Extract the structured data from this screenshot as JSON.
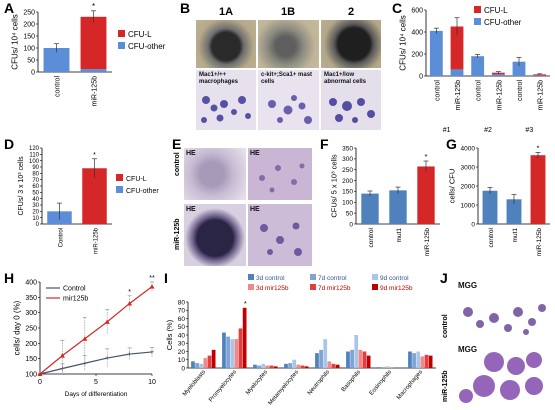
{
  "panel_labels": {
    "A": "A",
    "B": "B",
    "C": "C",
    "D": "D",
    "E": "E",
    "F": "F",
    "G": "G",
    "H": "H",
    "I": "I",
    "J": "J"
  },
  "colors": {
    "cfu_l": "#d62728",
    "cfu_other": "#5b8ed6",
    "bar_blue": "#4f81bd",
    "bar_red": "#d62728",
    "line_blue": "#44546a",
    "line_red": "#d62728"
  },
  "panel_B": {
    "headers": [
      "1A",
      "1B",
      "2"
    ],
    "captions": [
      "Mac1+/++ macrophages",
      "c-kit+;Sca1+ mast cells",
      "Mac1+/low abnormal cells"
    ]
  },
  "panel_E": {
    "row_labels": [
      "control",
      "miR-125b"
    ],
    "tags": [
      "HE",
      "HE",
      "HE",
      "HE"
    ]
  },
  "panel_J": {
    "row_labels": [
      "control",
      "miR-125b"
    ],
    "tags": [
      "MGG",
      "MGG"
    ]
  },
  "chart_data": [
    {
      "id": "A",
      "type": "bar",
      "stacked": true,
      "categories": [
        "control",
        "miR-125b"
      ],
      "series": [
        {
          "name": "CFU-other",
          "color": "#5b8ed6",
          "values": [
            100,
            12
          ]
        },
        {
          "name": "CFU-L",
          "color": "#d62728",
          "values": [
            0,
            218
          ]
        }
      ],
      "errors": [
        18,
        25
      ],
      "significance": [
        "",
        "*"
      ],
      "ylabel": "CFUs/ 10⁴ cells",
      "ylim": [
        0,
        250
      ],
      "yticks": [
        0,
        50,
        100,
        150,
        200,
        250
      ],
      "legend": [
        "CFU-L",
        "CFU-other"
      ],
      "legend_position": "right"
    },
    {
      "id": "C",
      "type": "bar",
      "stacked": true,
      "categories": [
        "control",
        "miR-125b",
        "control",
        "miR-125b",
        "control",
        "miR-125b"
      ],
      "groups": [
        "#1",
        "#2",
        "#3"
      ],
      "series": [
        {
          "name": "CFU-other",
          "color": "#5b8ed6",
          "values": [
            410,
            60,
            180,
            15,
            130,
            5
          ]
        },
        {
          "name": "CFU-L",
          "color": "#d62728",
          "values": [
            0,
            390,
            0,
            15,
            0,
            10
          ]
        }
      ],
      "errors": [
        25,
        80,
        15,
        10,
        40,
        5
      ],
      "ylabel": "CFUs/ 10⁴ cells",
      "ylim": [
        0,
        600
      ],
      "yticks": [
        0,
        200,
        400,
        600
      ],
      "legend": [
        "CFU-L",
        "CFU-other"
      ],
      "legend_position": "top-right"
    },
    {
      "id": "D",
      "type": "bar",
      "stacked": true,
      "categories": [
        "Control",
        "miR-125b"
      ],
      "series": [
        {
          "name": "CFU-other",
          "color": "#5b8ed6",
          "values": [
            20,
            0
          ]
        },
        {
          "name": "CFU-L",
          "color": "#d62728",
          "values": [
            0,
            88
          ]
        }
      ],
      "errors": [
        13,
        15
      ],
      "significance": [
        "",
        "*"
      ],
      "ylabel": "CFUs/ 3 x 10³ cells",
      "ylim": [
        0,
        120
      ],
      "yticks": [
        0,
        10,
        20,
        30,
        40,
        50,
        60,
        70,
        80,
        90,
        100,
        110,
        120
      ],
      "legend": [
        "CFU-L",
        "CFU-other"
      ],
      "legend_position": "right"
    },
    {
      "id": "F",
      "type": "bar",
      "categories": [
        "control",
        "mut1",
        "miR-125b"
      ],
      "values": [
        140,
        155,
        265
      ],
      "colors": [
        "#4f81bd",
        "#4f81bd",
        "#d62728"
      ],
      "errors": [
        12,
        15,
        25
      ],
      "significance": [
        "",
        "",
        "*"
      ],
      "ylabel": "CFUs/ 5 x 10³ cells",
      "ylim": [
        0,
        350
      ],
      "yticks": [
        0,
        50,
        100,
        150,
        200,
        250,
        300,
        350
      ]
    },
    {
      "id": "G",
      "type": "bar",
      "categories": [
        "control",
        "mut1",
        "miR-125b"
      ],
      "values": [
        1750,
        1300,
        3620
      ],
      "colors": [
        "#4f81bd",
        "#4f81bd",
        "#d62728"
      ],
      "errors": [
        180,
        250,
        150
      ],
      "significance": [
        "",
        "",
        "*"
      ],
      "ylabel": "cells/ CFU",
      "ylim": [
        0,
        4000
      ],
      "yticks": [
        0,
        1000,
        2000,
        3000,
        4000
      ]
    },
    {
      "id": "H",
      "type": "line",
      "x": [
        0,
        2,
        4,
        6,
        8,
        10
      ],
      "series": [
        {
          "name": "Control",
          "color": "#44546a",
          "marker": "+",
          "values": [
            100,
            118,
            135,
            152,
            165,
            172
          ]
        },
        {
          "name": "mir125b",
          "color": "#d62728",
          "marker": "triangle",
          "values": [
            100,
            160,
            215,
            270,
            330,
            385
          ]
        }
      ],
      "errors_control": [
        0,
        15,
        25,
        30,
        20,
        15
      ],
      "errors_mir": [
        0,
        50,
        70,
        40,
        25,
        15
      ],
      "significance": [
        {
          "x": 8,
          "label": "*"
        },
        {
          "x": 10,
          "label": "**"
        }
      ],
      "xlabel": "Days of differentiation",
      "ylabel": "cells/ day 0 (%)",
      "xlim": [
        0,
        10
      ],
      "ylim": [
        100,
        400
      ],
      "xticks": [
        0,
        5,
        10
      ],
      "yticks": [
        100,
        150,
        200,
        250,
        300,
        350,
        400
      ],
      "legend_position": "top-left"
    },
    {
      "id": "I",
      "type": "bar",
      "categories": [
        "Myeloblasts",
        "Promyelocytes",
        "Myelocytes",
        "Metamyelocytes",
        "Neutrophils",
        "Basophils",
        "Eosinophils",
        "Macrophages"
      ],
      "series": [
        {
          "name": "3d control",
          "color": "#4f81bd",
          "values": [
            8,
            43,
            4,
            5,
            18,
            20,
            1,
            20
          ]
        },
        {
          "name": "7d control",
          "color": "#7fa3d3",
          "values": [
            6,
            38,
            3,
            6,
            22,
            22,
            1,
            18
          ]
        },
        {
          "name": "9d control",
          "color": "#a9c6e8",
          "values": [
            5,
            35,
            5,
            10,
            35,
            40,
            2,
            20
          ]
        },
        {
          "name": "3d mir125b",
          "color": "#f08a8a",
          "values": [
            12,
            35,
            3,
            4,
            8,
            22,
            1,
            14
          ]
        },
        {
          "name": "7d mir125b",
          "color": "#e04040",
          "values": [
            15,
            48,
            3,
            3,
            5,
            20,
            0,
            16
          ]
        },
        {
          "name": "9d mir125b",
          "color": "#c00000",
          "values": [
            22,
            73,
            2,
            2,
            4,
            15,
            0,
            15
          ]
        }
      ],
      "significance": [
        {
          "category": "Promyelocytes",
          "label": "*"
        }
      ],
      "ylabel": "Cells (%)",
      "ylim": [
        0,
        80
      ],
      "yticks": [
        0,
        10,
        20,
        30,
        40,
        50,
        60,
        70,
        80
      ],
      "legend_position": "top"
    }
  ]
}
